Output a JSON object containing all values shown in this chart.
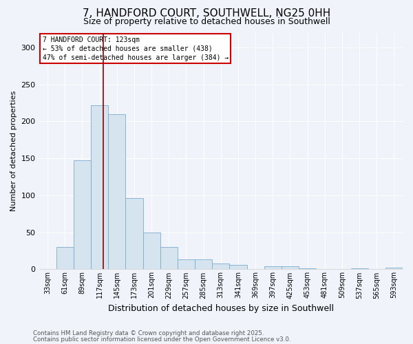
{
  "title1": "7, HANDFORD COURT, SOUTHWELL, NG25 0HH",
  "title2": "Size of property relative to detached houses in Southwell",
  "xlabel": "Distribution of detached houses by size in Southwell",
  "ylabel": "Number of detached properties",
  "categories": [
    "33sqm",
    "61sqm",
    "89sqm",
    "117sqm",
    "145sqm",
    "173sqm",
    "201sqm",
    "229sqm",
    "257sqm",
    "285sqm",
    "313sqm",
    "341sqm",
    "369sqm",
    "397sqm",
    "425sqm",
    "453sqm",
    "481sqm",
    "509sqm",
    "537sqm",
    "565sqm",
    "593sqm"
  ],
  "values": [
    0,
    30,
    147,
    222,
    210,
    96,
    50,
    30,
    13,
    13,
    8,
    6,
    0,
    4,
    4,
    1,
    0,
    0,
    1,
    0,
    2
  ],
  "bar_color": "#d6e4f0",
  "bar_edge_color": "#7aabcc",
  "vline_color": "#8b0000",
  "annotation_title": "7 HANDFORD COURT: 123sqm",
  "annotation_line2": "← 53% of detached houses are smaller (438)",
  "annotation_line3": "47% of semi-detached houses are larger (384) →",
  "annotation_box_color": "#ffffff",
  "annotation_box_edge_color": "#cc0000",
  "ylim": [
    0,
    320
  ],
  "yticks": [
    0,
    50,
    100,
    150,
    200,
    250,
    300
  ],
  "footer1": "Contains HM Land Registry data © Crown copyright and database right 2025.",
  "footer2": "Contains public sector information licensed under the Open Government Licence v3.0.",
  "bg_color": "#f0f4fa",
  "plot_bg_color": "#f0f4fa",
  "title1_fontsize": 11,
  "title2_fontsize": 9,
  "tick_fontsize": 7,
  "ylabel_fontsize": 8,
  "xlabel_fontsize": 9
}
